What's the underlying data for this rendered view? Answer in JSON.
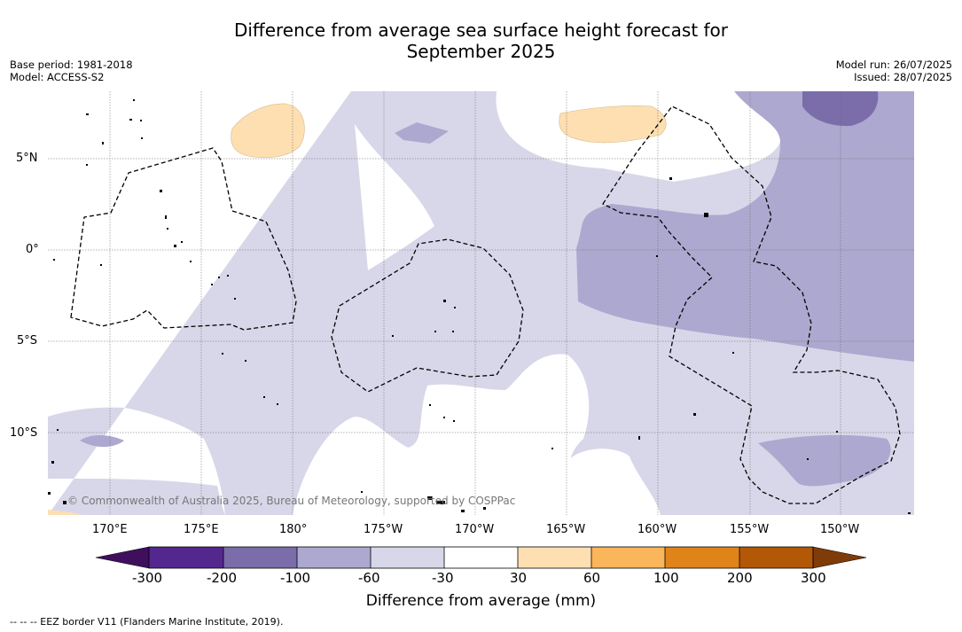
{
  "title_line1": "Difference from average sea surface height forecast for",
  "title_line2": "September 2025",
  "meta_left": [
    "Base period: 1981-2018",
    "Model: ACCESS-S2"
  ],
  "meta_right": [
    "Model run: 26/07/2025",
    "Issued: 28/07/2025"
  ],
  "lat_labels": [
    "5°N",
    "0°",
    "5°S",
    "10°S"
  ],
  "lon_labels": [
    "170°E",
    "175°E",
    "180°",
    "175°W",
    "170°W",
    "165°W",
    "160°W",
    "155°W",
    "150°W"
  ],
  "colorbar": {
    "title": "Difference from average (mm)",
    "ticks": [
      "-300",
      "-200",
      "-100",
      "-60",
      "-30",
      "30",
      "60",
      "100",
      "200",
      "300"
    ],
    "colors": [
      "#3f0f5e",
      "#54278f",
      "#7b6daa",
      "#ada8cf",
      "#d7d7e9",
      "#ffffff",
      "#fddfb2",
      "#fbb55b",
      "#e0841a",
      "#b35806",
      "#7f3b08"
    ]
  },
  "copyright": "© Commonwealth of Australia 2025, Bureau of Meteorology, supported by COSPPac",
  "footnote": "-- -- -- EEZ border V11 (Flanders Marine Institute, 2019)."
}
